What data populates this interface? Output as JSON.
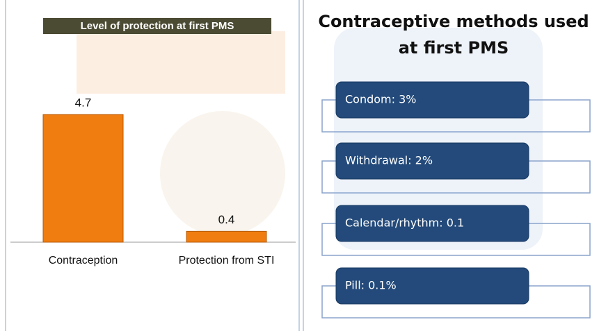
{
  "chart_data": {
    "type": "bar",
    "title": "Level of protection at first  PMS",
    "categories": [
      "Contraception",
      "Protection from STI"
    ],
    "values": [
      4.7,
      0.4
    ],
    "color": "#f07d10"
  },
  "methods_panel": {
    "title": [
      "Contraceptive methods used",
      "at first PMS"
    ],
    "items": [
      "Condom: 3%",
      "Withdrawal: 2%",
      "Calendar/rhythm: 0.1",
      "Pill: 0.1%"
    ]
  }
}
